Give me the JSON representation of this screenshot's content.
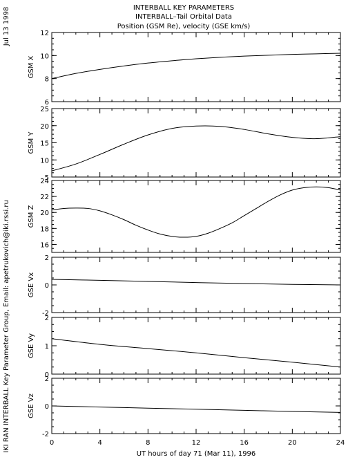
{
  "header": {
    "title_lines": [
      "INTERBALL KEY PARAMETERS",
      "INTERBALL–Tail Orbital Data",
      "Position (GSM Re), velocity (GSE km/s)"
    ],
    "date": "Jul 13 1998",
    "credit": "IKI RAN INTERBALL Key Parameter Group, Email: apetrukovich@iki.rssi.ru"
  },
  "chart_data": {
    "type": "line",
    "xlabel": "UT hours of day  71 (Mar 11), 1996",
    "xlim": [
      0,
      24
    ],
    "xticks": [
      0,
      4,
      8,
      12,
      16,
      20,
      24
    ],
    "grid": false,
    "panels": [
      {
        "name": "gsm-x",
        "ylabel": "GSM X",
        "ylim": [
          6,
          12
        ],
        "yticks": [
          6,
          8,
          10,
          12
        ],
        "x": [
          0,
          2,
          4,
          6,
          8,
          10,
          12,
          14,
          16,
          18,
          20,
          22,
          24
        ],
        "y": [
          8.0,
          8.45,
          8.8,
          9.1,
          9.35,
          9.55,
          9.72,
          9.85,
          9.95,
          10.03,
          10.1,
          10.15,
          10.2
        ]
      },
      {
        "name": "gsm-y",
        "ylabel": "GSM Y",
        "ylim": [
          5,
          25
        ],
        "yticks": [
          5,
          10,
          15,
          20,
          25
        ],
        "x": [
          0,
          2,
          4,
          6,
          8,
          10,
          12,
          14,
          16,
          18,
          20,
          22,
          24
        ],
        "y": [
          6.8,
          8.8,
          11.6,
          14.6,
          17.3,
          19.2,
          19.9,
          19.8,
          18.9,
          17.6,
          16.6,
          16.2,
          16.8
        ]
      },
      {
        "name": "gsm-z",
        "ylabel": "GSM Z",
        "ylim": [
          15,
          24
        ],
        "yticks": [
          16,
          18,
          20,
          22,
          24
        ],
        "x": [
          0,
          1,
          2,
          3,
          4,
          5,
          6,
          7,
          8,
          9,
          10,
          11,
          12,
          13,
          14,
          15,
          16,
          17,
          18,
          19,
          20,
          21,
          22,
          23,
          24
        ],
        "y": [
          20.3,
          20.5,
          20.55,
          20.5,
          20.2,
          19.7,
          19.1,
          18.4,
          17.8,
          17.3,
          17.0,
          16.9,
          17.0,
          17.4,
          18.0,
          18.7,
          19.6,
          20.5,
          21.4,
          22.2,
          22.8,
          23.1,
          23.2,
          23.1,
          22.8
        ]
      },
      {
        "name": "gse-vx",
        "ylabel": "GSE Vx",
        "ylim": [
          -2,
          2
        ],
        "yticks": [
          -2,
          0,
          2
        ],
        "x": [
          0,
          4,
          8,
          12,
          16,
          20,
          24
        ],
        "y": [
          0.4,
          0.33,
          0.25,
          0.17,
          0.1,
          0.04,
          0.0
        ]
      },
      {
        "name": "gse-vy",
        "ylabel": "GSE Vy",
        "ylim": [
          0,
          2
        ],
        "yticks": [
          0,
          1,
          2
        ],
        "x": [
          0,
          4,
          8,
          12,
          16,
          20,
          24
        ],
        "y": [
          1.25,
          1.05,
          0.9,
          0.75,
          0.58,
          0.42,
          0.25
        ]
      },
      {
        "name": "gse-vz",
        "ylabel": "GSE Vz",
        "ylim": [
          -2,
          2
        ],
        "yticks": [
          -2,
          0,
          2
        ],
        "x": [
          0,
          4,
          8,
          12,
          16,
          20,
          24
        ],
        "y": [
          0.0,
          -0.08,
          -0.16,
          -0.24,
          -0.32,
          -0.4,
          -0.47
        ]
      }
    ]
  }
}
